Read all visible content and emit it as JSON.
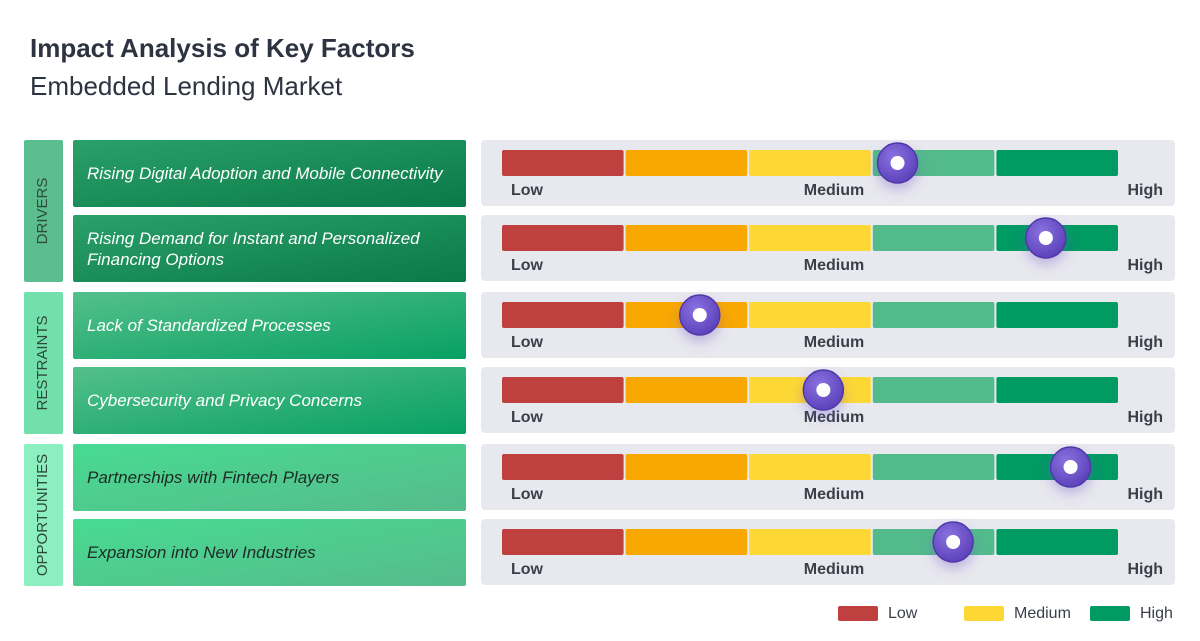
{
  "chart_data": {
    "type": "impact",
    "title": "Impact Analysis of Key Factors",
    "subtitle": "Embedded Lending Market",
    "xlim": [
      0,
      5
    ],
    "scale_labels": [
      "Low",
      "Medium",
      "High"
    ],
    "segment_colors": [
      "#c0403f",
      "#f9a802",
      "#fdd835",
      "#53ba8c",
      "#009a63"
    ],
    "groups": [
      {
        "name": "DRIVERS",
        "color": "#5cbd8e",
        "text_color": "#2d4a3c",
        "box_from": "#2ba06a",
        "box_to": "#0a7a48",
        "box_text": "#ffffff",
        "factors": [
          {
            "name": "Rising Digital Adoption and Mobile Connectivity",
            "value": 3.2
          },
          {
            "name": "Rising Demand for Instant and Personalized Financing Options",
            "value": 4.4
          }
        ]
      },
      {
        "name": "RESTRAINTS",
        "color": "#72e0aa",
        "text_color": "#2d4a3c",
        "box_from": "#54c08b",
        "box_to": "#08a063",
        "box_text": "#ffffff",
        "factors": [
          {
            "name": "Lack of Standardized Processes",
            "value": 1.6
          },
          {
            "name": "Cybersecurity and Privacy Concerns",
            "value": 2.6
          }
        ]
      },
      {
        "name": "OPPORTUNITIES",
        "color": "#8cefbf",
        "text_color": "#2d4a3c",
        "box_from": "#47db92",
        "box_to": "#56bb8b",
        "box_text": "#1e2a24",
        "factors": [
          {
            "name": "Partnerships with Fintech Players",
            "value": 4.6
          },
          {
            "name": "Expansion into New Industries",
            "value": 3.65
          }
        ]
      }
    ],
    "legend": [
      {
        "name": "Low",
        "color": "#c0403f"
      },
      {
        "name": "Medium",
        "color": "#fdd835"
      },
      {
        "name": "High",
        "color": "#009a63"
      }
    ]
  }
}
